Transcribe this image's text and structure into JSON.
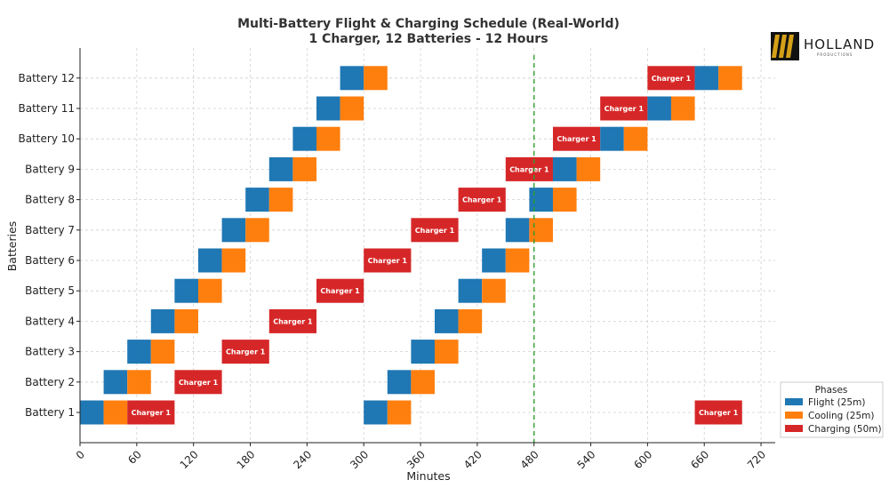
{
  "chart_data": {
    "type": "gantt",
    "title": "Multi-Battery Flight & Charging Schedule (Real-World)",
    "subtitle": "1 Charger, 12 Batteries - 12 Hours",
    "xlabel": "Minutes",
    "ylabel": "Batteries",
    "xlim": [
      0,
      735
    ],
    "xticks": [
      0,
      60,
      120,
      180,
      240,
      300,
      360,
      420,
      480,
      540,
      600,
      660,
      720
    ],
    "grid": true,
    "cutoff_line": {
      "x": 480,
      "style": "dashed",
      "color": "#2ca02c"
    },
    "phases": [
      {
        "key": "flight",
        "name": "Flight (25m)",
        "color": "#1f77b4"
      },
      {
        "key": "cooling",
        "name": "Cooling (25m)",
        "color": "#ff7f0e"
      },
      {
        "key": "charging",
        "name": "Charging (50m)",
        "color": "#d62728"
      }
    ],
    "charging_label": "Charger 1",
    "batteries": [
      {
        "name": "Battery 1",
        "segments": [
          {
            "phase": "flight",
            "start": 0,
            "duration": 25
          },
          {
            "phase": "cooling",
            "start": 25,
            "duration": 25
          },
          {
            "phase": "charging",
            "start": 50,
            "duration": 50
          },
          {
            "phase": "flight",
            "start": 300,
            "duration": 25
          },
          {
            "phase": "cooling",
            "start": 325,
            "duration": 25
          },
          {
            "phase": "charging",
            "start": 650,
            "duration": 50
          }
        ]
      },
      {
        "name": "Battery 2",
        "segments": [
          {
            "phase": "flight",
            "start": 25,
            "duration": 25
          },
          {
            "phase": "cooling",
            "start": 50,
            "duration": 25
          },
          {
            "phase": "charging",
            "start": 100,
            "duration": 50
          },
          {
            "phase": "flight",
            "start": 325,
            "duration": 25
          },
          {
            "phase": "cooling",
            "start": 350,
            "duration": 25
          }
        ]
      },
      {
        "name": "Battery 3",
        "segments": [
          {
            "phase": "flight",
            "start": 50,
            "duration": 25
          },
          {
            "phase": "cooling",
            "start": 75,
            "duration": 25
          },
          {
            "phase": "charging",
            "start": 150,
            "duration": 50
          },
          {
            "phase": "flight",
            "start": 350,
            "duration": 25
          },
          {
            "phase": "cooling",
            "start": 375,
            "duration": 25
          }
        ]
      },
      {
        "name": "Battery 4",
        "segments": [
          {
            "phase": "flight",
            "start": 75,
            "duration": 25
          },
          {
            "phase": "cooling",
            "start": 100,
            "duration": 25
          },
          {
            "phase": "charging",
            "start": 200,
            "duration": 50
          },
          {
            "phase": "flight",
            "start": 375,
            "duration": 25
          },
          {
            "phase": "cooling",
            "start": 400,
            "duration": 25
          }
        ]
      },
      {
        "name": "Battery 5",
        "segments": [
          {
            "phase": "flight",
            "start": 100,
            "duration": 25
          },
          {
            "phase": "cooling",
            "start": 125,
            "duration": 25
          },
          {
            "phase": "charging",
            "start": 250,
            "duration": 50
          },
          {
            "phase": "flight",
            "start": 400,
            "duration": 25
          },
          {
            "phase": "cooling",
            "start": 425,
            "duration": 25
          }
        ]
      },
      {
        "name": "Battery 6",
        "segments": [
          {
            "phase": "flight",
            "start": 125,
            "duration": 25
          },
          {
            "phase": "cooling",
            "start": 150,
            "duration": 25
          },
          {
            "phase": "charging",
            "start": 300,
            "duration": 50
          },
          {
            "phase": "flight",
            "start": 425,
            "duration": 25
          },
          {
            "phase": "cooling",
            "start": 450,
            "duration": 25
          }
        ]
      },
      {
        "name": "Battery 7",
        "segments": [
          {
            "phase": "flight",
            "start": 150,
            "duration": 25
          },
          {
            "phase": "cooling",
            "start": 175,
            "duration": 25
          },
          {
            "phase": "charging",
            "start": 350,
            "duration": 50
          },
          {
            "phase": "flight",
            "start": 450,
            "duration": 25
          },
          {
            "phase": "cooling",
            "start": 475,
            "duration": 25
          }
        ]
      },
      {
        "name": "Battery 8",
        "segments": [
          {
            "phase": "flight",
            "start": 175,
            "duration": 25
          },
          {
            "phase": "cooling",
            "start": 200,
            "duration": 25
          },
          {
            "phase": "charging",
            "start": 400,
            "duration": 50
          },
          {
            "phase": "flight",
            "start": 475,
            "duration": 25
          },
          {
            "phase": "cooling",
            "start": 500,
            "duration": 25
          }
        ]
      },
      {
        "name": "Battery 9",
        "segments": [
          {
            "phase": "flight",
            "start": 200,
            "duration": 25
          },
          {
            "phase": "cooling",
            "start": 225,
            "duration": 25
          },
          {
            "phase": "charging",
            "start": 450,
            "duration": 50
          },
          {
            "phase": "flight",
            "start": 500,
            "duration": 25
          },
          {
            "phase": "cooling",
            "start": 525,
            "duration": 25
          }
        ]
      },
      {
        "name": "Battery 10",
        "segments": [
          {
            "phase": "flight",
            "start": 225,
            "duration": 25
          },
          {
            "phase": "cooling",
            "start": 250,
            "duration": 25
          },
          {
            "phase": "charging",
            "start": 500,
            "duration": 50
          },
          {
            "phase": "flight",
            "start": 550,
            "duration": 25
          },
          {
            "phase": "cooling",
            "start": 575,
            "duration": 25
          }
        ]
      },
      {
        "name": "Battery 11",
        "segments": [
          {
            "phase": "flight",
            "start": 250,
            "duration": 25
          },
          {
            "phase": "cooling",
            "start": 275,
            "duration": 25
          },
          {
            "phase": "charging",
            "start": 550,
            "duration": 50
          },
          {
            "phase": "flight",
            "start": 600,
            "duration": 25
          },
          {
            "phase": "cooling",
            "start": 625,
            "duration": 25
          }
        ]
      },
      {
        "name": "Battery 12",
        "segments": [
          {
            "phase": "flight",
            "start": 275,
            "duration": 25
          },
          {
            "phase": "cooling",
            "start": 300,
            "duration": 25
          },
          {
            "phase": "charging",
            "start": 600,
            "duration": 50
          },
          {
            "phase": "flight",
            "start": 650,
            "duration": 25
          },
          {
            "phase": "cooling",
            "start": 675,
            "duration": 25
          }
        ]
      }
    ],
    "legend": {
      "title": "Phases",
      "position": "lower-right"
    }
  },
  "logo": {
    "name": "HOLLAND",
    "tagline": "PRODUCTIONS",
    "accent_color": "#d4a017"
  }
}
